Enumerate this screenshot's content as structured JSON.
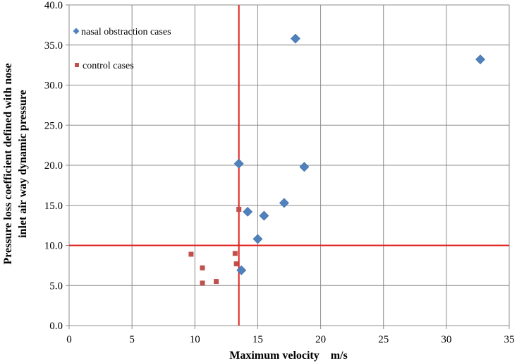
{
  "chart_data": {
    "type": "scatter",
    "title": "",
    "xlabel": "Maximum velocity　m/s",
    "ylabel_lines": [
      "Pressure loss coefficient defined with nose",
      "inlet air way dynamic pressure"
    ],
    "xlim": [
      0,
      35
    ],
    "ylim": [
      0,
      40
    ],
    "x_ticks": [
      0,
      5,
      10,
      15,
      20,
      25,
      30,
      35
    ],
    "x_tick_labels": [
      "0",
      "5",
      "10",
      "15",
      "20",
      "25",
      "30",
      "35"
    ],
    "y_ticks": [
      0,
      5,
      10,
      15,
      20,
      25,
      30,
      35,
      40
    ],
    "y_tick_labels": [
      "0.0",
      "5.0",
      "10.0",
      "15.0",
      "20.0",
      "25.0",
      "30.0",
      "35.0",
      "40.0"
    ],
    "grid": true,
    "legend_position": "top-left",
    "series": [
      {
        "name": "nasal obstraction cases",
        "marker": "diamond",
        "color": "#4F81BD",
        "points": [
          {
            "x": 18.0,
            "y": 35.8
          },
          {
            "x": 32.7,
            "y": 33.2
          },
          {
            "x": 13.5,
            "y": 20.2
          },
          {
            "x": 18.7,
            "y": 19.8
          },
          {
            "x": 17.1,
            "y": 15.3
          },
          {
            "x": 14.2,
            "y": 14.2
          },
          {
            "x": 15.5,
            "y": 13.7
          },
          {
            "x": 15.0,
            "y": 10.8
          },
          {
            "x": 13.7,
            "y": 6.9
          }
        ]
      },
      {
        "name": "control cases",
        "marker": "square",
        "color": "#C0504D",
        "points": [
          {
            "x": 13.5,
            "y": 14.5
          },
          {
            "x": 9.7,
            "y": 8.9
          },
          {
            "x": 13.2,
            "y": 9.0
          },
          {
            "x": 13.3,
            "y": 7.7
          },
          {
            "x": 10.6,
            "y": 7.2
          },
          {
            "x": 11.7,
            "y": 5.5
          },
          {
            "x": 10.6,
            "y": 5.3
          }
        ]
      }
    ],
    "reference_lines": [
      {
        "orientation": "vertical",
        "x": 13.5,
        "color": "#E0201B"
      },
      {
        "orientation": "horizontal",
        "y": 10.0,
        "color": "#E0201B"
      }
    ]
  }
}
